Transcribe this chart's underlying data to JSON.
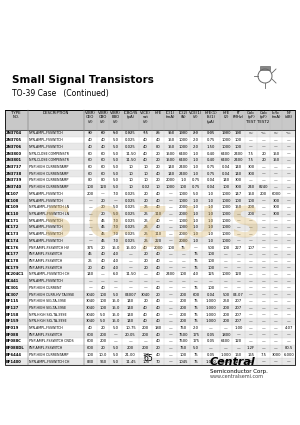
{
  "title": "Small Signal Transistors",
  "subtitle": "TO-39 Case   (Continued)",
  "page_number": "65",
  "bg_color": "#ffffff",
  "table_header_bg": "#c8c8c8",
  "row_colors": [
    "#e8e8e8",
    "#ffffff"
  ],
  "col_widths_rel": [
    18,
    45,
    10,
    10,
    10,
    14,
    10,
    10,
    10,
    10,
    10,
    14,
    10,
    10,
    10,
    10,
    10,
    10
  ],
  "col_labels_line1": [
    "TYPE",
    "DESCRIPTION",
    "V(BR)",
    "V(BR)",
    "V(BR)",
    "ICBO/IS",
    "V(CE)",
    "hFE",
    "IC(1)",
    "IC(2)",
    "VCE(1)",
    "hFE(1)",
    "hFE",
    "fT",
    "Cob",
    "Cob",
    "Ib/Ic",
    "NF"
  ],
  "col_labels_line2": [
    "NO.",
    "",
    "CEO",
    "CBO",
    "EBO",
    "(pA)",
    "sat",
    "",
    "(mA)",
    "(A)",
    "(V)",
    "IS(1)",
    "(2)",
    "(MHz)",
    "(pF)",
    "(pF)",
    "(mA)",
    "(dB)"
  ],
  "col_labels_line3": [
    "",
    "",
    "(V)",
    "(V)",
    "(V)",
    "",
    "(V)",
    "",
    "",
    "",
    "",
    "(µA)",
    "",
    "",
    "TEST",
    "TEST2",
    "",
    ""
  ],
  "col_units": [
    "BV/A",
    "BV/A",
    "BV/A",
    "BV/A",
    "BV/A",
    "BV/A",
    "BV/A",
    "BV/A",
    "mA/A",
    "mA/A",
    "V/mA",
    "mA/A",
    "mA/A",
    "BV/A",
    "BV/A",
    "BV/A",
    "BV/A",
    "BV/A"
  ],
  "rows": [
    [
      "2N3704",
      "NPN,AMPL,FSSWITCH",
      "30",
      "60",
      "5.0",
      "0.025",
      "7.5",
      "25",
      "150",
      "1000",
      "2.0",
      "0.05",
      "1000",
      "100",
      "—",
      "—",
      "—",
      "—"
    ],
    [
      "2N3705",
      "NPN,AMPL,FSSWITCH",
      "40",
      "40",
      "5.0",
      "0.025",
      "40",
      "40",
      "150",
      "1000",
      "2.0",
      "0.75",
      "1000",
      "100",
      "—",
      "—",
      "—",
      "—"
    ],
    [
      "2N3706",
      "NPN,AMPL,FSSWITCH",
      "40",
      "40",
      "5.0",
      "0.025",
      "40",
      "80",
      "150",
      "1000",
      "2.0",
      "1.50",
      "1000",
      "100",
      "—",
      "—",
      "—",
      "—"
    ],
    [
      "2N3800",
      "NPN,CLOSE COMPENSTR",
      "60",
      "60",
      "5.0",
      "11.50",
      "40",
      "20",
      "1500",
      "6400",
      "1.0",
      "0.40",
      "6400",
      "2400",
      "7.5",
      "20",
      "150",
      "—"
    ],
    [
      "2N3801",
      "NPN,CLOSE COMPENSTR",
      "60",
      "60",
      "5.0",
      "11.50",
      "40",
      "20",
      "1500",
      "6400",
      "1.0",
      "0.40",
      "6400",
      "2400",
      "7.5",
      "20",
      "150",
      "—"
    ],
    [
      "2N3737",
      "PNP,HIGH CURRENTAMP",
      "60",
      "60",
      "5.0",
      "10",
      "10",
      "20",
      "140",
      "2400",
      "1.0",
      "0.75",
      "0.04",
      "140",
      "300",
      "—",
      "—",
      "—"
    ],
    [
      "2N3738",
      "PNP,HIGH CURRENTAMP",
      "60",
      "60",
      "5.0",
      "10",
      "10",
      "40",
      "140",
      "2400",
      "1.0",
      "0.75",
      "0.04",
      "140",
      "300",
      "—",
      "—",
      "—"
    ],
    [
      "2N3739",
      "PNP,HIGH CURRENTAMP",
      "80",
      "80",
      "5.0",
      "10",
      "10",
      "20",
      "2000",
      "1.0",
      "0.75",
      "0.04",
      "140",
      "300",
      "—",
      "—",
      "—",
      "—"
    ],
    [
      "2N3740",
      "PNP,HIGH CURRENTAMP",
      "100",
      "120",
      "5.0",
      "10",
      "0.02",
      "10",
      "1000",
      "100",
      "0.75",
      "0.04",
      "100",
      "300",
      "240",
      "8240",
      "—",
      "—"
    ],
    [
      "BC107",
      "NPN,AMPL,FSSWITCH",
      "200",
      "—",
      "7.0",
      "0.025",
      "20",
      "40",
      "—",
      "1000",
      "5.0",
      "1.0",
      "1000",
      "147",
      "150",
      "200",
      "6000",
      "—"
    ],
    [
      "BC108",
      "NPN,AMPL,FSSWITCH",
      "—",
      "20",
      "—",
      "0.025",
      "20",
      "40",
      "—",
      "1000",
      "1.0",
      "1.0",
      "1000",
      "100",
      "100",
      "—",
      "300",
      "—"
    ],
    [
      "BC109",
      "NPN,AMPL,FSSWITCH LN",
      "—",
      "20",
      "5.0",
      "0.025",
      "25",
      "40",
      "—",
      "2000",
      "1.0",
      "1.0",
      "1000",
      "150",
      "200",
      "—",
      "300",
      "—"
    ],
    [
      "BC110",
      "NPN,AMPL,FSSWITCH LN",
      "—",
      "20",
      "5.0",
      "0.025",
      "25",
      "110",
      "—",
      "2000",
      "1.0",
      "1.0",
      "1000",
      "—",
      "200",
      "—",
      "300",
      "—"
    ],
    [
      "BC171",
      "NPN,AMPL,FSSWITCH",
      "—",
      "45",
      "7.0",
      "0.025",
      "25",
      "40",
      "—",
      "1000",
      "1.0",
      "1.0",
      "1000",
      "—",
      "—",
      "—",
      "—",
      "—"
    ],
    [
      "BC172",
      "NPN,AMPL,FSSWITCH",
      "—",
      "45",
      "7.0",
      "0.025",
      "25",
      "40",
      "—",
      "1000",
      "1.0",
      "1.0",
      "1000",
      "—",
      "—",
      "—",
      "—",
      "—"
    ],
    [
      "BC173",
      "NPN,AMPL,FSSWITCH",
      "—",
      "45",
      "7.0",
      "0.025",
      "25",
      "110",
      "—",
      "2000",
      "1.0",
      "1.0",
      "1000",
      "—",
      "—",
      "—",
      "—",
      "—"
    ],
    [
      "BC174",
      "NPN,AMPL,FSSWITCH",
      "—",
      "45",
      "7.0",
      "0.025",
      "25",
      "220",
      "—",
      "2000",
      "1.0",
      "1.0",
      "1000",
      "—",
      "—",
      "—",
      "—",
      "—"
    ],
    [
      "BC176",
      "PNP,AMPL,FSSWITCH HV",
      "375",
      "20",
      "15.0",
      "15.00",
      "40",
      "2000",
      "100",
      "75",
      "—",
      "500",
      "100",
      "227",
      "107",
      "—",
      "—",
      "—"
    ],
    [
      "BC177",
      "PNP,AMPL,FSSWITCH",
      "45",
      "40",
      "4.0",
      "—",
      "20",
      "40",
      "—",
      "—",
      "75",
      "100",
      "—",
      "—",
      "—",
      "—",
      "—",
      "—"
    ],
    [
      "BC178",
      "PNP,AMPL,FSSWITCH",
      "25",
      "40",
      "4.0",
      "—",
      "20",
      "40",
      "—",
      "—",
      "75",
      "100",
      "—",
      "—",
      "—",
      "—",
      "—",
      "—"
    ],
    [
      "BC179",
      "PNP,AMPL,FSSWITCH",
      "20",
      "40",
      "4.0",
      "—",
      "20",
      "40",
      "—",
      "—",
      "75",
      "100",
      "—",
      "—",
      "—",
      "—",
      "—",
      "—"
    ],
    [
      "BC204C1",
      "NPN,AMPL,FSSWITCH CH",
      "140",
      "—",
      "6.0",
      "11.50",
      "—",
      "40",
      "2400",
      "100",
      "4.0",
      "125",
      "1000",
      "120",
      "—",
      "—",
      "—",
      "—"
    ],
    [
      "BC441",
      "NPN,AMPL,FSSWITCH",
      "—",
      "—",
      "—",
      "—",
      "—",
      "—",
      "—",
      "—",
      "—",
      "—",
      "—",
      "—",
      "—",
      "—",
      "—",
      "—"
    ],
    [
      "BC301",
      "PNP,HIGH CURRENT",
      "—",
      "40",
      "—",
      "—",
      "—",
      "40",
      "—",
      "—",
      "75",
      "100",
      "—",
      "—",
      "—",
      "—",
      "—",
      "—"
    ],
    [
      "BC307",
      "PNP,HIGH CURR,HV TA39SE",
      "3040",
      "100",
      "5.0",
      "04007",
      "3040",
      "20",
      "—",
      "200",
      "600",
      "0.04",
      "500",
      "04.07",
      "—",
      "—",
      "—",
      "—"
    ],
    [
      "BF115",
      "PNP,HIGH SIG,TA-39SE",
      "3040",
      "100",
      "15.0",
      "140",
      "20",
      "40",
      "—",
      "200",
      "75",
      "1.000",
      "250",
      "207",
      "—",
      "—",
      "—",
      "—"
    ],
    [
      "BF127",
      "PNP,HIGH SIG,TA-39SE",
      "3040",
      "100",
      "15.0",
      "140",
      "40",
      "40",
      "—",
      "200",
      "75",
      "1.000",
      "200",
      "207",
      "—",
      "—",
      "—",
      "—"
    ],
    [
      "BF158",
      "NPN,HIGH SIG,TA-39SE",
      "3040",
      "5.0",
      "15.0",
      "140",
      "40",
      "40",
      "—",
      "200",
      "75",
      "1.000",
      "200",
      "207",
      "—",
      "—",
      "—",
      "—"
    ],
    [
      "BF159",
      "NPN,HIGH SIG,TA-39SE",
      "3040",
      "5.0",
      "15.0",
      "140",
      "40",
      "40",
      "—",
      "200",
      "75",
      "1.000",
      "200",
      "207",
      "—",
      "—",
      "—",
      "—"
    ],
    [
      "BF019",
      "NPN,AMPL,FSSWITCH",
      "40",
      "20",
      "5.0",
      "10.75",
      "200",
      "180",
      "—",
      "750",
      "2.0",
      "—",
      "—",
      "1.00",
      "—",
      "—",
      "—",
      "4.07"
    ],
    [
      "BF088",
      "PNP,AMPL,FSSWITCH",
      "600",
      "200",
      "—",
      "20.05",
      "200",
      "40",
      "—",
      "7500",
      "175",
      "0.05",
      "1800",
      "—",
      "—",
      "—",
      "—",
      "—"
    ],
    [
      "BF088C",
      "PNP,AMPL,FSSWITCH CNDS",
      "600",
      "200",
      "—",
      "—",
      "—",
      "40",
      "—",
      "7500",
      "175",
      "0.05",
      "6400",
      "120",
      "—",
      "—",
      "—",
      "—"
    ],
    [
      "BF088DL",
      "PNP,AMPL,FSSWITCH",
      "600",
      "20",
      "5.0",
      "200",
      "200",
      "20",
      "—",
      "750",
      "5.0",
      "—",
      "—",
      "—",
      "1.2F",
      "—",
      "—",
      "80.5"
    ],
    [
      "BF6444",
      "PNP,HIGH CURRENTAMP",
      "100",
      "10.0",
      "5.0",
      "21.00",
      "100",
      "40",
      "—",
      "100",
      "75",
      "0.05",
      "1.000",
      "160",
      "165",
      "7.5",
      "3000",
      "6.000"
    ],
    [
      "BF1400",
      "NPN,AMPL,FSSWITCH CH",
      "830",
      "960",
      "5.0",
      "11.45",
      "100",
      "70",
      "—",
      "1045",
      "75",
      "1.000",
      "6400",
      "140",
      "12",
      "—",
      "—",
      "—"
    ]
  ]
}
